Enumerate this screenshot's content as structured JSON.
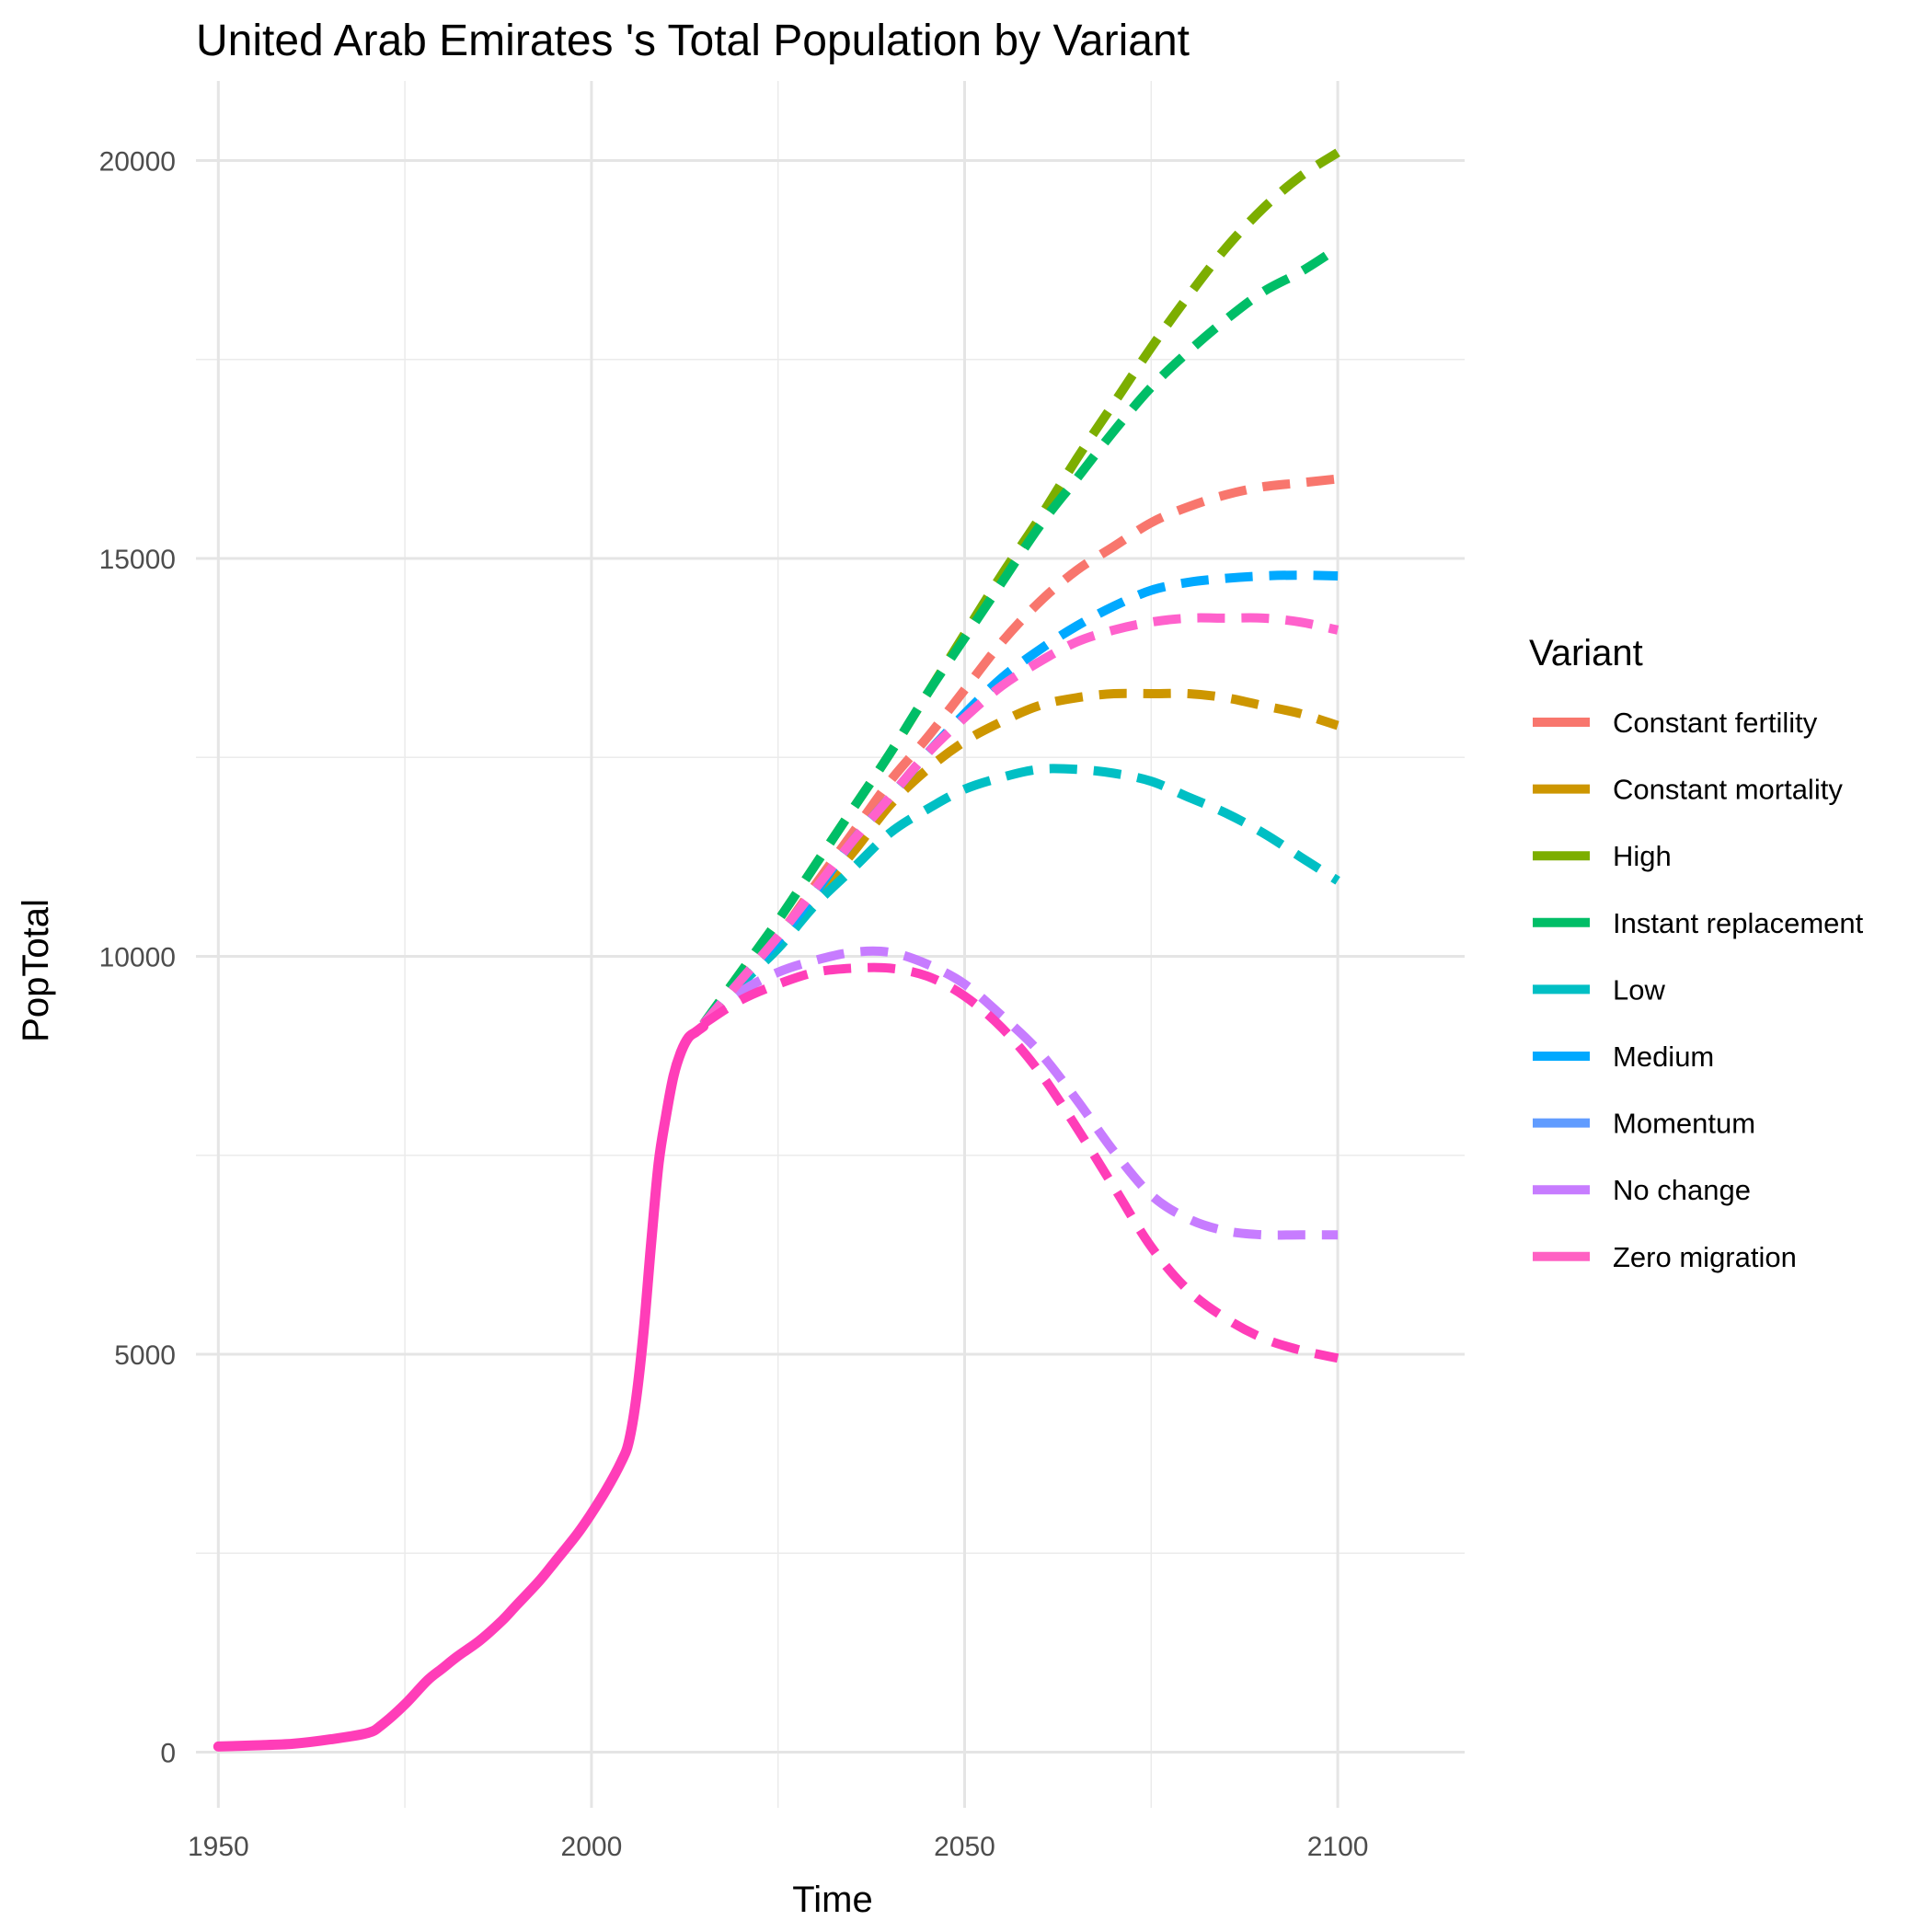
{
  "chart_data": {
    "type": "line",
    "title": "United Arab Emirates 's Total Population by Variant",
    "xlabel": "Time",
    "ylabel": "PopTotal",
    "xlim": [
      1947,
      2117
    ],
    "ylim": [
      -700,
      21000
    ],
    "x_ticks": [
      1950,
      2000,
      2050,
      2100
    ],
    "x_tick_labels": [
      "1950",
      "2000",
      "2050",
      "2100"
    ],
    "y_ticks": [
      0,
      5000,
      10000,
      15000,
      20000
    ],
    "y_tick_labels": [
      "0",
      "5000",
      "10000",
      "15000",
      "20000"
    ],
    "grid": true,
    "legend": {
      "title": "Variant",
      "position": "right"
    },
    "historical": {
      "name": "Zero migration",
      "x": [
        1950,
        1955,
        1960,
        1965,
        1970,
        1972,
        1975,
        1978,
        1980,
        1982,
        1985,
        1988,
        1990,
        1993,
        1995,
        1998,
        2000,
        2002,
        2004,
        2005,
        2006,
        2007,
        2008,
        2009,
        2010,
        2011,
        2012,
        2013,
        2014,
        2015
      ],
      "y": [
        70,
        85,
        105,
        160,
        240,
        350,
        600,
        900,
        1050,
        1200,
        1400,
        1650,
        1850,
        2150,
        2380,
        2730,
        3000,
        3300,
        3650,
        3900,
        4450,
        5300,
        6400,
        7400,
        8000,
        8500,
        8800,
        8980,
        9050,
        9120
      ]
    },
    "series": [
      {
        "name": "Constant fertility",
        "color": "#F8766D",
        "x": [
          2015,
          2020,
          2025,
          2030,
          2035,
          2040,
          2045,
          2050,
          2055,
          2060,
          2065,
          2070,
          2075,
          2080,
          2085,
          2090,
          2095,
          2100
        ],
        "y": [
          9150,
          9750,
          10250,
          10900,
          11550,
          12200,
          12750,
          13350,
          13950,
          14450,
          14850,
          15150,
          15450,
          15650,
          15800,
          15900,
          15950,
          16000
        ]
      },
      {
        "name": "Constant mortality",
        "color": "#CD9600",
        "x": [
          2015,
          2020,
          2025,
          2030,
          2035,
          2040,
          2045,
          2050,
          2055,
          2060,
          2065,
          2070,
          2075,
          2080,
          2085,
          2090,
          2095,
          2100
        ],
        "y": [
          9150,
          9700,
          10200,
          10750,
          11300,
          11900,
          12350,
          12700,
          12950,
          13150,
          13250,
          13300,
          13300,
          13300,
          13250,
          13150,
          13050,
          12900
        ]
      },
      {
        "name": "High",
        "color": "#7CAE00",
        "x": [
          2015,
          2020,
          2025,
          2030,
          2035,
          2040,
          2045,
          2050,
          2055,
          2060,
          2065,
          2070,
          2075,
          2080,
          2085,
          2090,
          2095,
          2100
        ],
        "y": [
          9150,
          9800,
          10450,
          11150,
          11850,
          12550,
          13300,
          14050,
          14800,
          15500,
          16250,
          16950,
          17650,
          18300,
          18900,
          19400,
          19800,
          20100
        ]
      },
      {
        "name": "Instant replacement",
        "color": "#00BE67",
        "x": [
          2015,
          2020,
          2025,
          2030,
          2035,
          2040,
          2045,
          2050,
          2055,
          2060,
          2065,
          2070,
          2075,
          2080,
          2085,
          2090,
          2095,
          2100
        ],
        "y": [
          9150,
          9800,
          10450,
          11150,
          11850,
          12550,
          13300,
          14000,
          14700,
          15400,
          16000,
          16600,
          17150,
          17600,
          18000,
          18350,
          18600,
          18900
        ]
      },
      {
        "name": "Low",
        "color": "#00BFC4",
        "x": [
          2015,
          2020,
          2025,
          2030,
          2035,
          2040,
          2045,
          2050,
          2055,
          2060,
          2065,
          2070,
          2075,
          2080,
          2085,
          2090,
          2095,
          2100
        ],
        "y": [
          9150,
          9650,
          10100,
          10650,
          11100,
          11550,
          11850,
          12100,
          12250,
          12350,
          12350,
          12300,
          12200,
          12000,
          11800,
          11550,
          11250,
          10950
        ]
      },
      {
        "name": "Medium",
        "color": "#00A9FF",
        "x": [
          2015,
          2020,
          2025,
          2030,
          2035,
          2040,
          2045,
          2050,
          2055,
          2060,
          2065,
          2070,
          2075,
          2080,
          2085,
          2090,
          2095,
          2100
        ],
        "y": [
          9150,
          9700,
          10200,
          10800,
          11450,
          12000,
          12550,
          13050,
          13500,
          13850,
          14150,
          14400,
          14600,
          14700,
          14750,
          14780,
          14790,
          14780
        ]
      },
      {
        "name": "Momentum",
        "color": "#C77CFF",
        "x": [
          2015,
          2020,
          2025,
          2030,
          2035,
          2040,
          2045,
          2050,
          2055,
          2060,
          2065,
          2070,
          2075,
          2080,
          2085,
          2090,
          2095,
          2100
        ],
        "y": [
          9150,
          9550,
          9800,
          9950,
          10050,
          10050,
          9900,
          9650,
          9250,
          8800,
          8200,
          7550,
          7000,
          6700,
          6550,
          6500,
          6500,
          6500
        ]
      },
      {
        "name": "No change",
        "color": "#FF61CC",
        "x": [
          2015,
          2020,
          2025,
          2030,
          2035,
          2040,
          2045,
          2050,
          2055,
          2060,
          2065,
          2070,
          2075,
          2080,
          2085,
          2090,
          2095,
          2100
        ],
        "y": [
          9150,
          9700,
          10250,
          10850,
          11450,
          12000,
          12550,
          13000,
          13400,
          13700,
          13950,
          14100,
          14200,
          14250,
          14250,
          14250,
          14200,
          14100
        ]
      },
      {
        "name": "Zero migration",
        "color": "#FF3DB8",
        "x": [
          2015,
          2020,
          2025,
          2030,
          2035,
          2040,
          2045,
          2050,
          2055,
          2060,
          2065,
          2070,
          2075,
          2080,
          2085,
          2090,
          2095,
          2100
        ],
        "y": [
          9150,
          9450,
          9650,
          9800,
          9850,
          9850,
          9750,
          9500,
          9100,
          8550,
          7850,
          7100,
          6350,
          5800,
          5450,
          5200,
          5050,
          4950
        ]
      }
    ],
    "legend_swatch_colors": [
      "#F8766D",
      "#CD9600",
      "#7CAE00",
      "#00BE67",
      "#00BFC4",
      "#00A9FF",
      "#619CFF",
      "#C77CFF",
      "#FF61C3"
    ]
  }
}
